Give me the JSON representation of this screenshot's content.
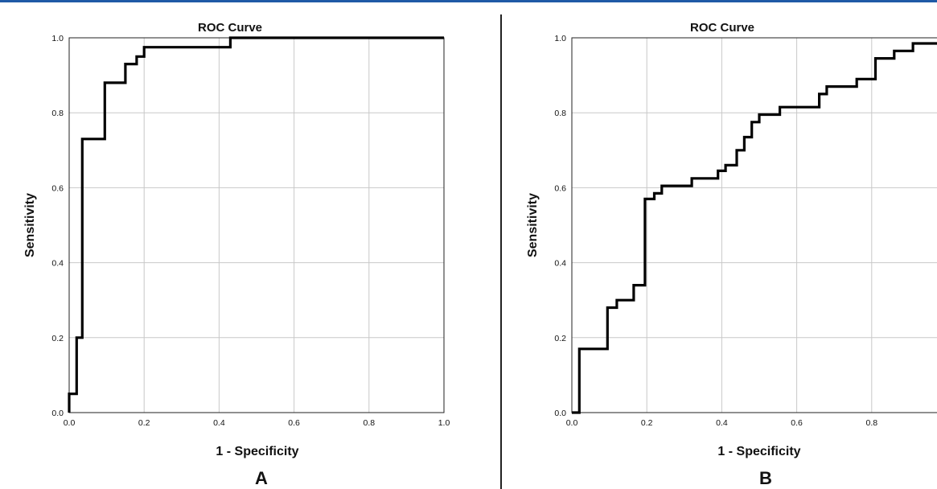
{
  "chart_data": [
    {
      "type": "line",
      "panel_label": "A",
      "title": "ROC Curve",
      "xlabel": "1 - Specificity",
      "ylabel": "Sensitivity",
      "xlim": [
        0,
        1
      ],
      "ylim": [
        0,
        1
      ],
      "xticks": [
        "0.0",
        "0.2",
        "0.4",
        "0.6",
        "0.8",
        "1.0"
      ],
      "yticks": [
        "0.0",
        "0.2",
        "0.4",
        "0.6",
        "0.8",
        "1.0"
      ],
      "grid": true,
      "series": [
        {
          "x": [
            0.0,
            0.0,
            0.02,
            0.02,
            0.035,
            0.035,
            0.04,
            0.04,
            0.095,
            0.095,
            0.15,
            0.15,
            0.18,
            0.18,
            0.2,
            0.2,
            0.43,
            0.43,
            1.0
          ],
          "y": [
            0.0,
            0.05,
            0.05,
            0.2,
            0.2,
            0.73,
            0.73,
            0.73,
            0.73,
            0.88,
            0.88,
            0.93,
            0.93,
            0.95,
            0.95,
            0.975,
            0.975,
            1.0,
            1.0
          ]
        }
      ]
    },
    {
      "type": "line",
      "panel_label": "B",
      "title": "ROC Curve",
      "xlabel": "1 - Specificity",
      "ylabel": "Sensitivity",
      "xlim": [
        0,
        1
      ],
      "ylim": [
        0,
        1
      ],
      "xticks": [
        "0.0",
        "0.2",
        "0.4",
        "0.6",
        "0.8"
      ],
      "yticks": [
        "0.0",
        "0.2",
        "0.4",
        "0.6",
        "0.8",
        "1.0"
      ],
      "grid": true,
      "series": [
        {
          "x": [
            0.0,
            0.02,
            0.02,
            0.095,
            0.095,
            0.12,
            0.12,
            0.165,
            0.165,
            0.195,
            0.195,
            0.22,
            0.22,
            0.24,
            0.24,
            0.32,
            0.32,
            0.39,
            0.39,
            0.41,
            0.41,
            0.44,
            0.44,
            0.46,
            0.46,
            0.48,
            0.48,
            0.5,
            0.5,
            0.555,
            0.555,
            0.66,
            0.66,
            0.68,
            0.68,
            0.76,
            0.76,
            0.81,
            0.81,
            0.86,
            0.86,
            0.91,
            0.91,
            0.94,
            0.94,
            1.0
          ],
          "y": [
            0.0,
            0.0,
            0.17,
            0.17,
            0.28,
            0.28,
            0.3,
            0.3,
            0.34,
            0.34,
            0.57,
            0.57,
            0.585,
            0.585,
            0.605,
            0.605,
            0.625,
            0.625,
            0.645,
            0.645,
            0.66,
            0.66,
            0.7,
            0.7,
            0.735,
            0.735,
            0.775,
            0.775,
            0.795,
            0.795,
            0.815,
            0.815,
            0.85,
            0.85,
            0.87,
            0.87,
            0.89,
            0.89,
            0.945,
            0.945,
            0.965,
            0.965,
            0.985,
            0.985,
            0.985,
            0.985
          ]
        }
      ]
    }
  ]
}
